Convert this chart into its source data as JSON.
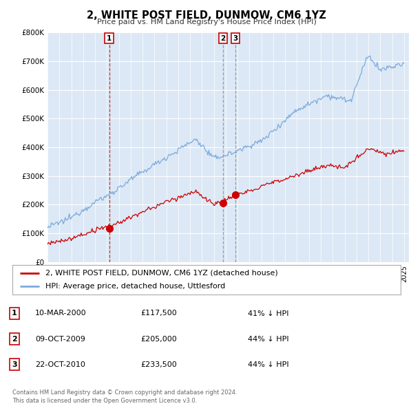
{
  "title": "2, WHITE POST FIELD, DUNMOW, CM6 1YZ",
  "subtitle": "Price paid vs. HM Land Registry's House Price Index (HPI)",
  "background_color": "#ffffff",
  "plot_bg_color": "#dce8f5",
  "grid_color": "#ffffff",
  "hpi_color": "#7aaadd",
  "price_color": "#cc0000",
  "ylim": [
    0,
    800000
  ],
  "yticks": [
    0,
    100000,
    200000,
    300000,
    400000,
    500000,
    600000,
    700000,
    800000
  ],
  "ytick_labels": [
    "£0",
    "£100K",
    "£200K",
    "£300K",
    "£400K",
    "£500K",
    "£600K",
    "£700K",
    "£800K"
  ],
  "legend_label_price": "2, WHITE POST FIELD, DUNMOW, CM6 1YZ (detached house)",
  "legend_label_hpi": "HPI: Average price, detached house, Uttlesford",
  "sale_dates": [
    "2000-03-10",
    "2009-10-09",
    "2010-10-22"
  ],
  "sale_prices": [
    117500,
    205000,
    233500
  ],
  "sale_labels": [
    "1",
    "2",
    "3"
  ],
  "vline_colors": [
    "#cc0000",
    "#888888",
    "#888888"
  ],
  "table_rows": [
    [
      "1",
      "10-MAR-2000",
      "£117,500",
      "41% ↓ HPI"
    ],
    [
      "2",
      "09-OCT-2009",
      "£205,000",
      "44% ↓ HPI"
    ],
    [
      "3",
      "22-OCT-2010",
      "£233,500",
      "44% ↓ HPI"
    ]
  ],
  "footnote": "Contains HM Land Registry data © Crown copyright and database right 2024.\nThis data is licensed under the Open Government Licence v3.0."
}
